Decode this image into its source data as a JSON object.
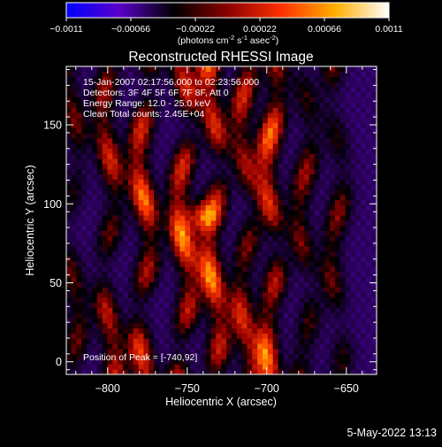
{
  "colorbar": {
    "min": -0.0011,
    "max": 0.0011,
    "tick_labels": [
      "-0.0011",
      "-0.00066",
      "-0.00022",
      "0.00022",
      "0.00066",
      "0.0011"
    ],
    "unit_label": "(photons cm",
    "unit_sup1": "-2",
    "unit_mid": " s",
    "unit_sup2": "-1",
    "unit_end": " asec",
    "unit_sup3": "-2",
    "unit_close": ")",
    "colors": [
      "#0000ff",
      "#5a00c8",
      "#000000",
      "#8a0000",
      "#ff3000",
      "#ffb000",
      "#ffffff"
    ]
  },
  "chart_data": {
    "type": "heatmap",
    "title": "Reconstructed RHESSI Image",
    "xlabel": "Heliocentric X (arcsec)",
    "ylabel": "Heliocentric Y (arcsec)",
    "xlim": [
      -826,
      -631
    ],
    "ylim": [
      -8,
      187
    ],
    "x_ticks": [
      -800,
      -750,
      -700,
      -650
    ],
    "x_tick_labels": [
      "−800",
      "−750",
      "−700",
      "−650"
    ],
    "y_ticks": [
      0,
      50,
      100,
      150
    ],
    "y_tick_labels": [
      "0",
      "50",
      "100",
      "150"
    ],
    "stripes": [
      {
        "x": -822,
        "amp": 0.45
      },
      {
        "x": -799,
        "amp": 0.7
      },
      {
        "x": -777,
        "amp": 0.95
      },
      {
        "x": -752,
        "amp": 1.0
      },
      {
        "x": -733,
        "amp": 1.0
      },
      {
        "x": -713,
        "amp": 0.7
      },
      {
        "x": -697,
        "amp": 0.95
      },
      {
        "x": -676,
        "amp": 0.55
      },
      {
        "x": -656,
        "amp": 0.5
      }
    ],
    "peak": {
      "x": -740,
      "y": 92
    },
    "annotations": [
      "15-Jan-2007 02:17:56.000 to 02:23:56.000",
      "Detectors: 3F 4F 5F 6F 7F 8F, Att 0",
      "Energy Range: 12.0 - 25.0 keV",
      "Clean     Total counts: 2.45E+04"
    ],
    "peak_label": "Position of Peak = [-740,92]"
  },
  "footer": {
    "timestamp": "5-May-2022 13:13"
  }
}
